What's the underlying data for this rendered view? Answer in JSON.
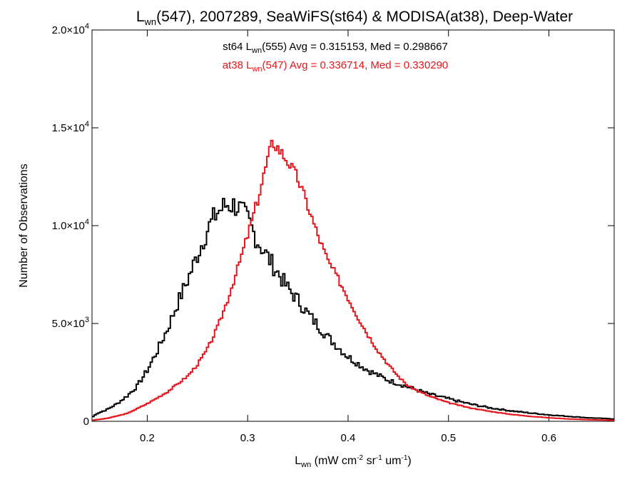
{
  "chart_data": {
    "type": "histogram",
    "title": {
      "prefix": "L",
      "sub": "wn",
      "suffix": "(547), 2007289, SeaWiFS(st64) & MODISA(at38), Deep-Water"
    },
    "xlabel": {
      "main": "L",
      "sub": "wn",
      "suffix": " (mW cm",
      "sup1": "-2",
      "mid1": " sr",
      "sup2": "-1",
      "mid2": " um",
      "sup3": "-1",
      "end": ")"
    },
    "ylabel": "Number of Observations",
    "xlim": [
      0.145,
      0.665
    ],
    "ylim": [
      0,
      20000
    ],
    "xticks": [
      {
        "value": 0.2,
        "label": "0.2"
      },
      {
        "value": 0.3,
        "label": "0.3"
      },
      {
        "value": 0.4,
        "label": "0.4"
      },
      {
        "value": 0.5,
        "label": "0.5"
      },
      {
        "value": 0.6,
        "label": "0.6"
      }
    ],
    "yticks": [
      {
        "value": 0,
        "mant": "0",
        "exp": ""
      },
      {
        "value": 5000,
        "mant": "5.0×10",
        "exp": "3"
      },
      {
        "value": 10000,
        "mant": "1.0×10",
        "exp": "4"
      },
      {
        "value": 15000,
        "mant": "1.5×10",
        "exp": "4"
      },
      {
        "value": 20000,
        "mant": "2.0×10",
        "exp": "4"
      }
    ],
    "legend": [
      {
        "pre": "st64 L",
        "sub": "wn",
        "post": "(555) Avg = 0.315153, Med = 0.298667",
        "color": "#000000"
      },
      {
        "pre": "at38 L",
        "sub": "wn",
        "post": "(547) Avg = 0.336714, Med = 0.330290",
        "color": "#e8141c"
      }
    ],
    "series": [
      {
        "key": "st64",
        "color": "#000000",
        "points": [
          [
            0.145,
            200
          ],
          [
            0.15,
            400
          ],
          [
            0.16,
            600
          ],
          [
            0.17,
            900
          ],
          [
            0.18,
            1300
          ],
          [
            0.19,
            1800
          ],
          [
            0.2,
            2600
          ],
          [
            0.21,
            3600
          ],
          [
            0.22,
            4700
          ],
          [
            0.23,
            6000
          ],
          [
            0.24,
            7200
          ],
          [
            0.25,
            8500
          ],
          [
            0.26,
            9800
          ],
          [
            0.27,
            10700
          ],
          [
            0.28,
            11100
          ],
          [
            0.29,
            11000
          ],
          [
            0.3,
            10300
          ],
          [
            0.31,
            9200
          ],
          [
            0.32,
            8400
          ],
          [
            0.33,
            7600
          ],
          [
            0.34,
            6800
          ],
          [
            0.35,
            6200
          ],
          [
            0.36,
            5500
          ],
          [
            0.37,
            4900
          ],
          [
            0.38,
            4300
          ],
          [
            0.39,
            3800
          ],
          [
            0.4,
            3300
          ],
          [
            0.42,
            2600
          ],
          [
            0.44,
            2100
          ],
          [
            0.46,
            1750
          ],
          [
            0.48,
            1400
          ],
          [
            0.5,
            1150
          ],
          [
            0.52,
            900
          ],
          [
            0.54,
            700
          ],
          [
            0.56,
            550
          ],
          [
            0.58,
            430
          ],
          [
            0.6,
            330
          ],
          [
            0.62,
            250
          ],
          [
            0.64,
            180
          ],
          [
            0.665,
            120
          ]
        ]
      },
      {
        "key": "at38",
        "color": "#e8141c",
        "points": [
          [
            0.145,
            50
          ],
          [
            0.16,
            150
          ],
          [
            0.18,
            400
          ],
          [
            0.2,
            900
          ],
          [
            0.22,
            1500
          ],
          [
            0.24,
            2300
          ],
          [
            0.25,
            2900
          ],
          [
            0.26,
            3700
          ],
          [
            0.27,
            4800
          ],
          [
            0.28,
            6200
          ],
          [
            0.29,
            7800
          ],
          [
            0.3,
            9500
          ],
          [
            0.31,
            11300
          ],
          [
            0.32,
            13400
          ],
          [
            0.325,
            14300
          ],
          [
            0.33,
            14000
          ],
          [
            0.34,
            13300
          ],
          [
            0.35,
            12400
          ],
          [
            0.36,
            11000
          ],
          [
            0.37,
            9500
          ],
          [
            0.38,
            8200
          ],
          [
            0.39,
            7300
          ],
          [
            0.4,
            6300
          ],
          [
            0.41,
            5300
          ],
          [
            0.42,
            4400
          ],
          [
            0.43,
            3600
          ],
          [
            0.44,
            2900
          ],
          [
            0.45,
            2300
          ],
          [
            0.46,
            1800
          ],
          [
            0.48,
            1300
          ],
          [
            0.5,
            950
          ],
          [
            0.52,
            700
          ],
          [
            0.54,
            520
          ],
          [
            0.56,
            370
          ],
          [
            0.58,
            260
          ],
          [
            0.6,
            180
          ],
          [
            0.62,
            120
          ],
          [
            0.64,
            80
          ],
          [
            0.665,
            50
          ]
        ]
      }
    ]
  }
}
